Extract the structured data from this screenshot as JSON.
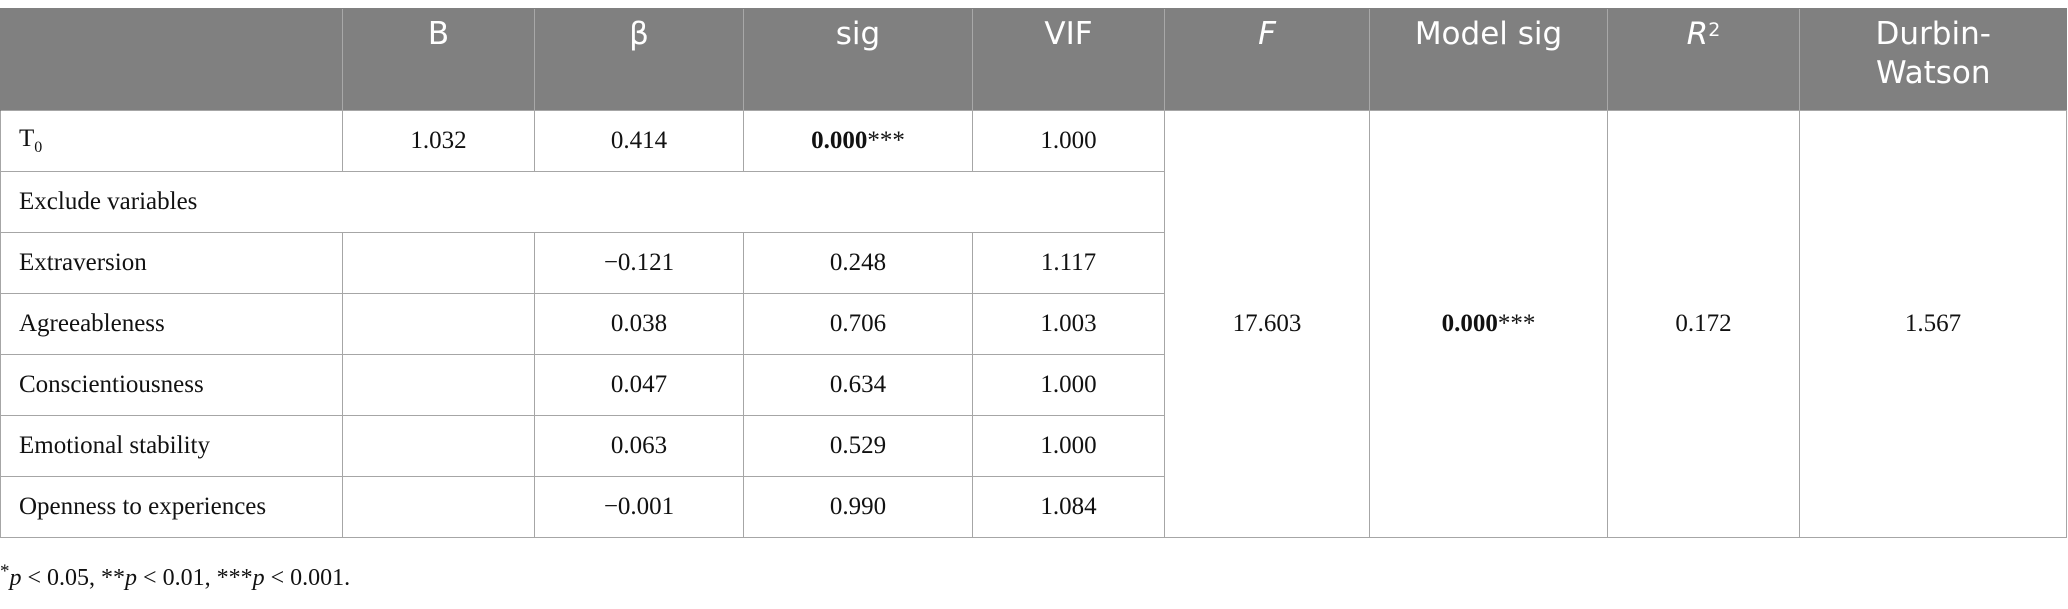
{
  "headers": {
    "col0": "",
    "b": "B",
    "beta": "β",
    "sig": "sig",
    "vif": "VIF",
    "f": "F",
    "model_sig": "Model sig",
    "r2_base": "R",
    "r2_sup": "2",
    "dw": "Durbin-Watson"
  },
  "rows": [
    {
      "label_base": "T",
      "label_sub": "0",
      "b": "1.032",
      "beta": "0.414",
      "sig_val": "0.000",
      "sig_stars": "***",
      "vif": "1.000"
    },
    {
      "label": "Exclude variables"
    },
    {
      "label": "Extraversion",
      "b": "",
      "beta": "−0.121",
      "sig": "0.248",
      "vif": "1.117"
    },
    {
      "label": "Agreeableness",
      "b": "",
      "beta": "0.038",
      "sig": "0.706",
      "vif": "1.003"
    },
    {
      "label": "Conscientiousness",
      "b": "",
      "beta": "0.047",
      "sig": "0.634",
      "vif": "1.000"
    },
    {
      "label": "Emotional stability",
      "b": "",
      "beta": "0.063",
      "sig": "0.529",
      "vif": "1.000"
    },
    {
      "label": "Openness to experiences",
      "b": "",
      "beta": "−0.001",
      "sig": "0.990",
      "vif": "1.084"
    }
  ],
  "model": {
    "f": "17.603",
    "sig_val": "0.000",
    "sig_stars": "***",
    "r2": "0.172",
    "dw": "1.567"
  },
  "note": {
    "s1": "*",
    "p1": "p",
    "t1": " < 0.05, **",
    "p2": "p",
    "t2": " < 0.01, ***",
    "p3": "p",
    "t3": " < 0.001."
  }
}
